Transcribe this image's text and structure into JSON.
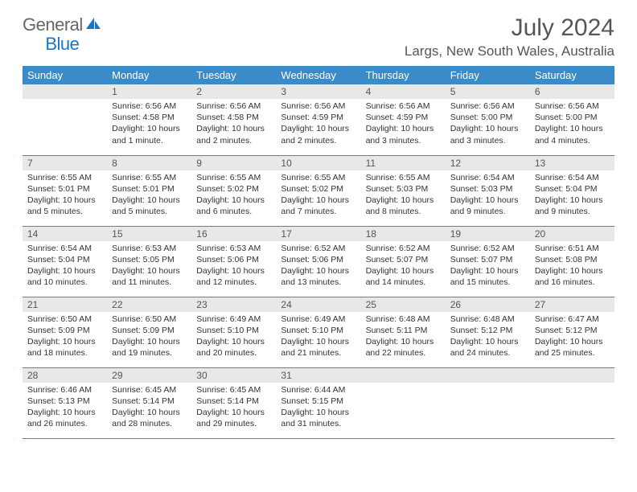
{
  "logo": {
    "text_general": "General",
    "text_blue": "Blue"
  },
  "title": "July 2024",
  "location": "Largs, New South Wales, Australia",
  "colors": {
    "header_bg": "#3b8bc9",
    "header_text": "#ffffff",
    "daynum_bg": "#e8e8e8",
    "daynum_text": "#555555",
    "body_text": "#333333",
    "rule": "#3b8bc9",
    "logo_blue": "#1976c5",
    "logo_gray": "#666666"
  },
  "weekdays": [
    "Sunday",
    "Monday",
    "Tuesday",
    "Wednesday",
    "Thursday",
    "Friday",
    "Saturday"
  ],
  "weeks": [
    [
      null,
      {
        "n": "1",
        "sunrise": "6:56 AM",
        "sunset": "4:58 PM",
        "daylight": "10 hours and 1 minute."
      },
      {
        "n": "2",
        "sunrise": "6:56 AM",
        "sunset": "4:58 PM",
        "daylight": "10 hours and 2 minutes."
      },
      {
        "n": "3",
        "sunrise": "6:56 AM",
        "sunset": "4:59 PM",
        "daylight": "10 hours and 2 minutes."
      },
      {
        "n": "4",
        "sunrise": "6:56 AM",
        "sunset": "4:59 PM",
        "daylight": "10 hours and 3 minutes."
      },
      {
        "n": "5",
        "sunrise": "6:56 AM",
        "sunset": "5:00 PM",
        "daylight": "10 hours and 3 minutes."
      },
      {
        "n": "6",
        "sunrise": "6:56 AM",
        "sunset": "5:00 PM",
        "daylight": "10 hours and 4 minutes."
      }
    ],
    [
      {
        "n": "7",
        "sunrise": "6:55 AM",
        "sunset": "5:01 PM",
        "daylight": "10 hours and 5 minutes."
      },
      {
        "n": "8",
        "sunrise": "6:55 AM",
        "sunset": "5:01 PM",
        "daylight": "10 hours and 5 minutes."
      },
      {
        "n": "9",
        "sunrise": "6:55 AM",
        "sunset": "5:02 PM",
        "daylight": "10 hours and 6 minutes."
      },
      {
        "n": "10",
        "sunrise": "6:55 AM",
        "sunset": "5:02 PM",
        "daylight": "10 hours and 7 minutes."
      },
      {
        "n": "11",
        "sunrise": "6:55 AM",
        "sunset": "5:03 PM",
        "daylight": "10 hours and 8 minutes."
      },
      {
        "n": "12",
        "sunrise": "6:54 AM",
        "sunset": "5:03 PM",
        "daylight": "10 hours and 9 minutes."
      },
      {
        "n": "13",
        "sunrise": "6:54 AM",
        "sunset": "5:04 PM",
        "daylight": "10 hours and 9 minutes."
      }
    ],
    [
      {
        "n": "14",
        "sunrise": "6:54 AM",
        "sunset": "5:04 PM",
        "daylight": "10 hours and 10 minutes."
      },
      {
        "n": "15",
        "sunrise": "6:53 AM",
        "sunset": "5:05 PM",
        "daylight": "10 hours and 11 minutes."
      },
      {
        "n": "16",
        "sunrise": "6:53 AM",
        "sunset": "5:06 PM",
        "daylight": "10 hours and 12 minutes."
      },
      {
        "n": "17",
        "sunrise": "6:52 AM",
        "sunset": "5:06 PM",
        "daylight": "10 hours and 13 minutes."
      },
      {
        "n": "18",
        "sunrise": "6:52 AM",
        "sunset": "5:07 PM",
        "daylight": "10 hours and 14 minutes."
      },
      {
        "n": "19",
        "sunrise": "6:52 AM",
        "sunset": "5:07 PM",
        "daylight": "10 hours and 15 minutes."
      },
      {
        "n": "20",
        "sunrise": "6:51 AM",
        "sunset": "5:08 PM",
        "daylight": "10 hours and 16 minutes."
      }
    ],
    [
      {
        "n": "21",
        "sunrise": "6:50 AM",
        "sunset": "5:09 PM",
        "daylight": "10 hours and 18 minutes."
      },
      {
        "n": "22",
        "sunrise": "6:50 AM",
        "sunset": "5:09 PM",
        "daylight": "10 hours and 19 minutes."
      },
      {
        "n": "23",
        "sunrise": "6:49 AM",
        "sunset": "5:10 PM",
        "daylight": "10 hours and 20 minutes."
      },
      {
        "n": "24",
        "sunrise": "6:49 AM",
        "sunset": "5:10 PM",
        "daylight": "10 hours and 21 minutes."
      },
      {
        "n": "25",
        "sunrise": "6:48 AM",
        "sunset": "5:11 PM",
        "daylight": "10 hours and 22 minutes."
      },
      {
        "n": "26",
        "sunrise": "6:48 AM",
        "sunset": "5:12 PM",
        "daylight": "10 hours and 24 minutes."
      },
      {
        "n": "27",
        "sunrise": "6:47 AM",
        "sunset": "5:12 PM",
        "daylight": "10 hours and 25 minutes."
      }
    ],
    [
      {
        "n": "28",
        "sunrise": "6:46 AM",
        "sunset": "5:13 PM",
        "daylight": "10 hours and 26 minutes."
      },
      {
        "n": "29",
        "sunrise": "6:45 AM",
        "sunset": "5:14 PM",
        "daylight": "10 hours and 28 minutes."
      },
      {
        "n": "30",
        "sunrise": "6:45 AM",
        "sunset": "5:14 PM",
        "daylight": "10 hours and 29 minutes."
      },
      {
        "n": "31",
        "sunrise": "6:44 AM",
        "sunset": "5:15 PM",
        "daylight": "10 hours and 31 minutes."
      },
      null,
      null,
      null
    ]
  ],
  "labels": {
    "sunrise": "Sunrise:",
    "sunset": "Sunset:",
    "daylight": "Daylight:"
  }
}
